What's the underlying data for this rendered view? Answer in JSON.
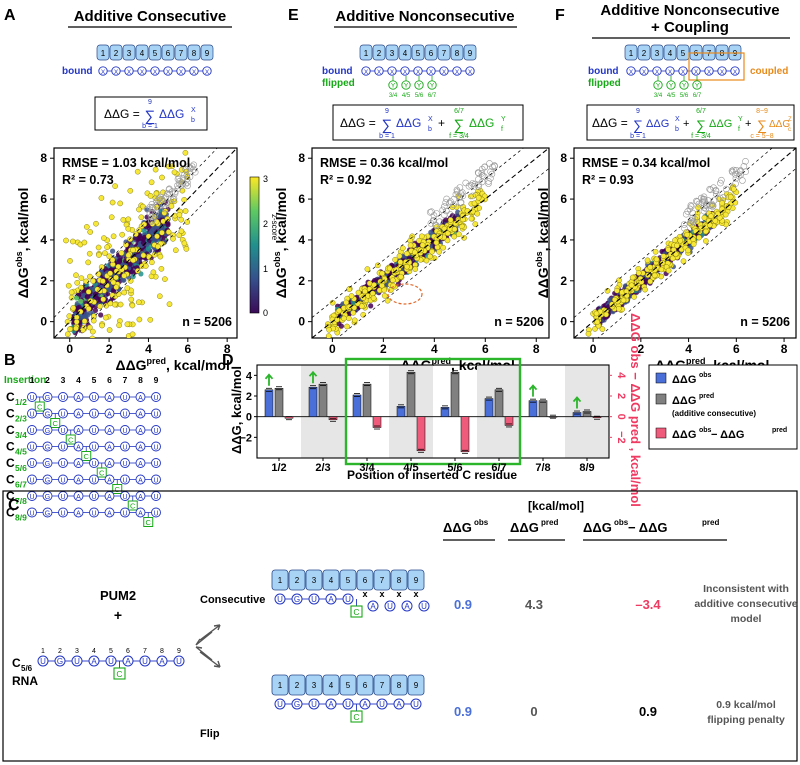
{
  "panelA": {
    "letter": "A",
    "title": "Additive Consecutive",
    "bound_label": "bound",
    "modules": [
      "1",
      "2",
      "3",
      "4",
      "5",
      "6",
      "7",
      "8",
      "9"
    ],
    "eq_lhs": "ΔΔG =",
    "eq_sum_top": "9",
    "eq_sum_bottom": "b = 1",
    "eq_term": "ΔΔG",
    "eq_sup": "X",
    "eq_sub": "b",
    "rmse": "RMSE = 1.03 kcal/mol",
    "r2": "R² = 0.73",
    "n": "n = 5206",
    "colorbar_label": "z-score",
    "colorbar_ticks": [
      "3",
      "2",
      "1",
      "0"
    ]
  },
  "panelE": {
    "letter": "E",
    "title": "Additive Nonconsecutive",
    "bound_label": "bound",
    "flipped_label": "flipped",
    "flip_labels": [
      "3/4",
      "4/5",
      "5/6",
      "6/7"
    ],
    "eq_lhs": "ΔΔG =",
    "eq_sum1_top": "9",
    "eq_sum1_bottom": "b = 1",
    "eq_sum2_top": "6/7",
    "eq_sum2_bottom": "f = 3/4",
    "eq_term1": "ΔΔG",
    "eq_term2": "ΔΔG",
    "eq_sup1": "X",
    "eq_sub1": "b",
    "eq_sup2": "Y",
    "eq_sub2": "f",
    "rmse": "RMSE = 0.36 kcal/mol",
    "r2": "R² = 0.92",
    "n": "n = 5206"
  },
  "panelF": {
    "letter": "F",
    "title_line1": "Additive Nonconsecutive",
    "title_line2": "+ Coupling",
    "bound_label": "bound",
    "flipped_label": "flipped",
    "coupled_label": "coupled",
    "eq_lhs": "ΔΔG =",
    "eq_sum3_top": "8−9",
    "eq_sum3_bottom": "c = 5−8",
    "eq_sup3": "Z",
    "eq_sub3": "c",
    "rmse": "RMSE = 0.34 kcal/mol",
    "r2": "R² = 0.93",
    "n": "n = 5206"
  },
  "scatter_axes": {
    "xlabel_main": "ΔΔG",
    "xlabel_sup": "pred",
    "xlabel_unit": ", kcal/mol",
    "ylabel_main": "ΔΔG",
    "ylabel_sup": "obs",
    "ylabel_unit": ", kcal/mol",
    "ticks": [
      "0",
      "2",
      "4",
      "6",
      "8"
    ]
  },
  "panelB": {
    "letter": "B",
    "header": "Insertion",
    "positions": [
      "1",
      "2",
      "3",
      "4",
      "5",
      "6",
      "7",
      "8",
      "9"
    ],
    "sequence": [
      "U",
      "G",
      "U",
      "A",
      "U",
      "A",
      "U",
      "A",
      "U"
    ],
    "rows": [
      {
        "label": "C",
        "sub": "1/2"
      },
      {
        "label": "C",
        "sub": "2/3"
      },
      {
        "label": "C",
        "sub": "3/4"
      },
      {
        "label": "C",
        "sub": "4/5"
      },
      {
        "label": "C",
        "sub": "5/6"
      },
      {
        "label": "C",
        "sub": "6/7"
      },
      {
        "label": "C",
        "sub": "7/8"
      },
      {
        "label": "C",
        "sub": "8/9"
      }
    ],
    "inserted": "C"
  },
  "panelD": {
    "letter": "D",
    "ylabel": "ΔΔG, kcal/mol",
    "ylabel_right": "ΔΔG obs − ΔΔG pred , kcal/mol",
    "xlabel": "Position of inserted C residue",
    "legend": [
      {
        "main": "ΔΔG",
        "sup": "obs"
      },
      {
        "main": "ΔΔG",
        "sup": "pred",
        "note": "(additive consecutive)"
      },
      {
        "main": "ΔΔG",
        "sup": "obs",
        "minus": " − ΔΔG",
        "sup2": "pred"
      }
    ]
  },
  "chart_data": {
    "type": "bar",
    "categories": [
      "1/2",
      "2/3",
      "3/4",
      "4/5",
      "5/6",
      "6/7",
      "7/8",
      "8/9"
    ],
    "series": [
      {
        "name": "ΔΔG obs",
        "color": "#4a6fd8",
        "values": [
          2.6,
          2.85,
          2.1,
          1.0,
          0.9,
          1.75,
          1.55,
          0.4
        ]
      },
      {
        "name": "ΔΔG pred (additive consecutive)",
        "color": "#808080",
        "values": [
          2.75,
          3.15,
          3.15,
          4.3,
          4.3,
          2.6,
          1.55,
          0.5
        ]
      },
      {
        "name": "ΔΔG obs − ΔΔG pred",
        "color": "#ef5b7b",
        "values": [
          -0.15,
          -0.3,
          -1.05,
          -3.3,
          -3.4,
          -0.85,
          0.0,
          -0.1
        ]
      }
    ],
    "ylim": [
      -4,
      5
    ],
    "yticks": [
      -2,
      0,
      2,
      4
    ],
    "right_ticks": [
      "−2",
      "0",
      "2",
      "4"
    ],
    "shaded_categories": [
      "2/3",
      "4/5",
      "6/7",
      "8/9"
    ],
    "highlighted_range": [
      "3/4",
      "6/7"
    ],
    "arrow_categories": [
      "1/2",
      "2/3",
      "7/8",
      "8/9"
    ],
    "xlabel": "Position of inserted C residue",
    "ylabel": "ΔΔG, kcal/mol"
  },
  "panelC": {
    "letter": "C",
    "protein": "PUM2",
    "plus": "+",
    "rna_label": "C",
    "rna_sub": "5/6",
    "rna_word": "RNA",
    "positions": [
      "1",
      "2",
      "3",
      "4",
      "5",
      "6",
      "7",
      "8",
      "9"
    ],
    "consecutive_label": "Consecutive",
    "flip_label": "Flip",
    "units": "[kcal/mol]",
    "col_obs": "ΔΔG",
    "col_obs_sup": "obs",
    "col_pred": "ΔΔG",
    "col_pred_sup": "pred",
    "col_diff": "ΔΔG",
    "col_diff_sup": "obs",
    "col_diff_mid": " − ΔΔG",
    "col_diff_sup2": "pred",
    "row1": {
      "obs": "0.9",
      "pred": "4.3",
      "diff": "–3.4",
      "note_line1": "Inconsistent with",
      "note_line2": "additive consecutive",
      "note_line3": "model"
    },
    "row2": {
      "obs": "0.9",
      "pred": "0",
      "diff": "0.9",
      "note_line1": "0.9 kcal/mol",
      "note_line2": "flipping penalty"
    },
    "cross": "x"
  }
}
